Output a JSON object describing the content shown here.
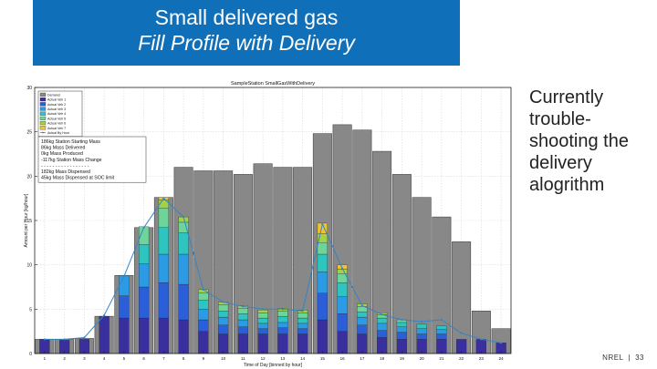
{
  "slide": {
    "title_line1": "Small delivered gas",
    "title_line2": "Fill Profile with Delivery",
    "side_note": "Currently trouble-shooting the delivery alogrithm",
    "footer_org": "NREL",
    "footer_sep": "|",
    "footer_page": "33"
  },
  "chart_data": {
    "type": "bar",
    "title": "SampleStation SmallGasWithDelivery",
    "xlabel": "Time of Day [binned by hour]",
    "ylabel": "Amount per Hour [kg/hour]",
    "ylim": [
      0,
      30
    ],
    "yticks": [
      0,
      5,
      10,
      15,
      20,
      25,
      30
    ],
    "xticks": [
      1,
      2,
      3,
      4,
      5,
      6,
      7,
      8,
      9,
      10,
      11,
      12,
      13,
      14,
      15,
      16,
      17,
      18,
      19,
      20,
      21,
      22,
      23,
      24
    ],
    "grid": true,
    "demand": [
      1.6,
      1.6,
      1.7,
      4.2,
      8.8,
      14.2,
      17.6,
      21.0,
      20.6,
      20.6,
      20.2,
      21.4,
      21.0,
      21.0,
      24.8,
      25.8,
      25.2,
      22.8,
      20.2,
      17.6,
      15.4,
      12.6,
      4.8,
      2.8
    ],
    "series": [
      {
        "name": "Actual Veh 1",
        "color": "#3a2f9e",
        "values": [
          1.6,
          1.5,
          1.6,
          4.2,
          4.0,
          4.0,
          4.0,
          3.8,
          2.5,
          2.2,
          2.2,
          2.2,
          2.2,
          2.2,
          3.8,
          2.5,
          2.2,
          1.8,
          1.6,
          1.6,
          1.6,
          1.6,
          1.6,
          1.2
        ]
      },
      {
        "name": "Actual Veh 2",
        "color": "#2b5fd9",
        "values": [
          0,
          0,
          0,
          0,
          2.5,
          3.5,
          4.0,
          4.0,
          1.3,
          1.0,
          0.8,
          0.6,
          0.7,
          0.6,
          3.0,
          2.0,
          1.0,
          0.8,
          0.8,
          0.6,
          0.6,
          0,
          0,
          0
        ]
      },
      {
        "name": "Actual Veh 3",
        "color": "#2c9be5",
        "values": [
          0,
          0,
          0,
          0,
          2.3,
          2.6,
          3.2,
          3.4,
          1.2,
          0.9,
          0.8,
          0.6,
          0.6,
          0.6,
          2.4,
          1.9,
          0.9,
          0.8,
          0.6,
          0.6,
          0.5,
          0,
          0,
          0
        ]
      },
      {
        "name": "Actual Veh 4",
        "color": "#2ec4c0",
        "values": [
          0,
          0,
          0,
          0,
          0,
          2.2,
          3.0,
          2.4,
          1.0,
          0.7,
          0.7,
          0.6,
          0.7,
          0.6,
          2.0,
          1.6,
          0.6,
          0.6,
          0.5,
          0.5,
          0.4,
          0,
          0,
          0
        ]
      },
      {
        "name": "Actual Veh 5",
        "color": "#6fd49a",
        "values": [
          0,
          0,
          0,
          0,
          0,
          2.0,
          2.2,
          1.2,
          0.8,
          0.7,
          0.6,
          0.6,
          0.6,
          0.6,
          1.3,
          1.0,
          0.6,
          0.4,
          0.3,
          0,
          0,
          0,
          0,
          0
        ]
      },
      {
        "name": "Actual Veh 6",
        "color": "#a4d246",
        "values": [
          0,
          0,
          0,
          0,
          0,
          0,
          0.9,
          0.6,
          0.4,
          0.3,
          0.3,
          0.3,
          0.3,
          0.3,
          1.0,
          0.5,
          0.3,
          0.2,
          0,
          0,
          0,
          0,
          0,
          0
        ]
      },
      {
        "name": "Actual Veh 7",
        "color": "#f2c22c",
        "values": [
          0,
          0,
          0,
          0,
          0,
          0,
          0.3,
          0,
          0,
          0,
          0,
          0,
          0,
          0,
          1.2,
          0.5,
          0,
          0,
          0,
          0,
          0,
          0,
          0,
          0
        ]
      }
    ],
    "actual_by_hour": [
      1.6,
      1.6,
      1.8,
      4.3,
      8.7,
      14.2,
      17.5,
      15.4,
      7.2,
      5.8,
      5.3,
      5.0,
      5.0,
      4.8,
      14.6,
      9.6,
      5.4,
      4.4,
      3.8,
      3.6,
      3.8,
      2.3,
      1.6,
      1.2
    ],
    "legend": [
      "Demand",
      "Actual Veh 1",
      "Actual Veh 2",
      "Actual Veh 3",
      "Actual Veh 4",
      "Actual Veh 5",
      "Actual Veh 6",
      "Actual Veh 7",
      "Actual By Hour"
    ],
    "legend_placement": "top-left",
    "colors": {
      "demand": "#888888",
      "actual_line": "#3584c4"
    },
    "annotation_lines": [
      "186kg Station Starting Mass",
      "86kg Mass Delivered",
      "0kg Mass Produced",
      "-117kg Station Mass Change",
      "- - - - - - - - - - - - - - - - -",
      "182kg Mass Dispensed",
      "45kg Mass Dispensed at SOC limit"
    ]
  }
}
